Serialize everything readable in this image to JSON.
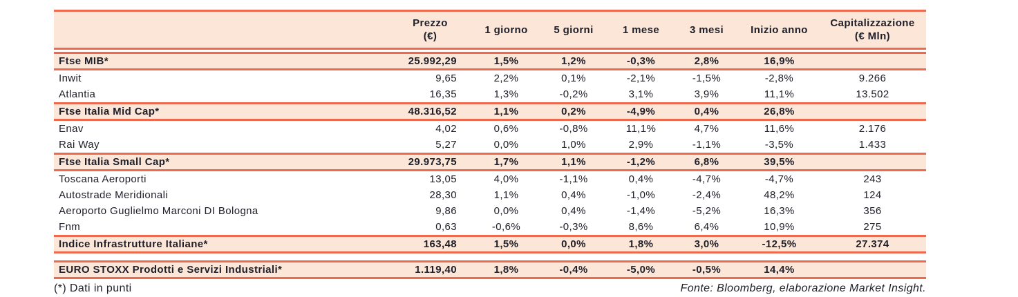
{
  "colors": {
    "accent": "#ed6a4f",
    "band": "#fce6d7",
    "text": "#20202b"
  },
  "table": {
    "columns": [
      {
        "label": ""
      },
      {
        "label": "Prezzo",
        "sub": "(€)"
      },
      {
        "label": "1 giorno"
      },
      {
        "label": "5 giorni"
      },
      {
        "label": "1 mese"
      },
      {
        "label": "3 mesi"
      },
      {
        "label": "Inizio anno"
      },
      {
        "label": "Capitalizzazione",
        "sub": "(€ Mln)"
      }
    ],
    "rows": [
      {
        "label": "Ftse MIB*",
        "style": "index",
        "values": [
          "25.992,29",
          "1,5%",
          "1,2%",
          "-0,3%",
          "2,8%",
          "16,9%",
          ""
        ]
      },
      {
        "label": "Inwit",
        "style": "stock",
        "values": [
          "9,65",
          "2,2%",
          "0,1%",
          "-2,1%",
          "-1,5%",
          "-2,8%",
          "9.266"
        ]
      },
      {
        "label": "Atlantia",
        "style": "stock",
        "values": [
          "16,35",
          "1,3%",
          "-0,2%",
          "3,1%",
          "3,9%",
          "11,1%",
          "13.502"
        ]
      },
      {
        "label": "Ftse Italia Mid Cap*",
        "style": "index",
        "values": [
          "48.316,52",
          "1,1%",
          "0,2%",
          "-4,9%",
          "0,4%",
          "26,8%",
          ""
        ]
      },
      {
        "label": "Enav",
        "style": "stock",
        "values": [
          "4,02",
          "0,6%",
          "-0,8%",
          "11,1%",
          "4,7%",
          "11,6%",
          "2.176"
        ]
      },
      {
        "label": "Rai Way",
        "style": "stock",
        "values": [
          "5,27",
          "0,0%",
          "1,0%",
          "2,9%",
          "-1,1%",
          "-3,5%",
          "1.433"
        ]
      },
      {
        "label": "Ftse Italia Small Cap*",
        "style": "index",
        "values": [
          "29.973,75",
          "1,7%",
          "1,1%",
          "-1,2%",
          "6,8%",
          "39,5%",
          ""
        ]
      },
      {
        "label": "Toscana Aeroporti",
        "style": "stock",
        "values": [
          "13,05",
          "4,0%",
          "-1,1%",
          "0,4%",
          "-4,7%",
          "-4,7%",
          "243"
        ]
      },
      {
        "label": "Autostrade Meridionali",
        "style": "stock",
        "values": [
          "28,30",
          "1,1%",
          "0,4%",
          "-1,0%",
          "-2,4%",
          "48,2%",
          "124"
        ]
      },
      {
        "label": "Aeroporto Guglielmo Marconi DI Bologna",
        "style": "stock",
        "values": [
          "9,86",
          "0,0%",
          "0,4%",
          "-1,4%",
          "-5,2%",
          "16,3%",
          "356"
        ]
      },
      {
        "label": "Fnm",
        "style": "stock",
        "values": [
          "0,63",
          "-0,6%",
          "-0,3%",
          "8,6%",
          "6,4%",
          "10,9%",
          "275"
        ]
      },
      {
        "label": "Indice Infrastrutture Italiane*",
        "style": "index",
        "values": [
          "163,48",
          "1,5%",
          "0,0%",
          "1,8%",
          "3,0%",
          "-12,5%",
          "27.374"
        ]
      },
      {
        "label": "EURO STOXX Prodotti e Servizi Industriali*",
        "style": "index",
        "gap_before": true,
        "values": [
          "1.119,40",
          "1,8%",
          "-0,4%",
          "-5,0%",
          "-0,5%",
          "14,4%",
          ""
        ]
      }
    ],
    "footnote": "(*) Dati in punti",
    "source": "Fonte: Bloomberg, elaborazione Market Insight."
  }
}
